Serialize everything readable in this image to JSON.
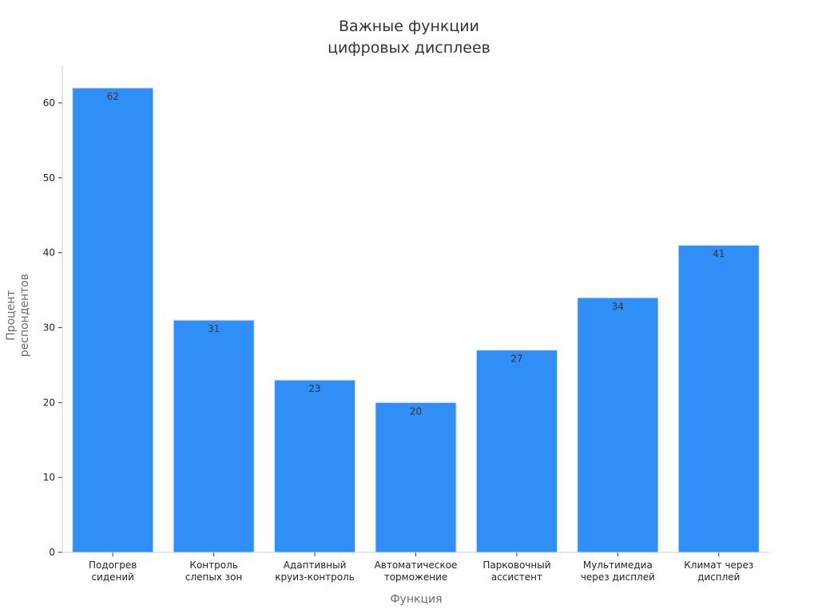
{
  "chart_data": {
    "type": "bar",
    "title": [
      "Важные функции",
      "цифровых дисплеев"
    ],
    "xlabel": "Функция",
    "ylabel": [
      "Процент",
      "респондентов"
    ],
    "categories": [
      [
        "Подогрев",
        "сидений"
      ],
      [
        "Контроль",
        "слепых зон"
      ],
      [
        "Адаптивный",
        "круиз-контроль"
      ],
      [
        "Автоматическое",
        "торможение"
      ],
      [
        "Парковочный",
        "ассистент"
      ],
      [
        "Мультимедиа",
        "через дисплей"
      ],
      [
        "Климат через",
        "дисплей"
      ]
    ],
    "values": [
      62,
      31,
      23,
      20,
      27,
      34,
      41
    ],
    "yticks": [
      0,
      10,
      20,
      30,
      40,
      50,
      60
    ],
    "ylim": [
      0,
      65
    ],
    "bar_color": "#2f8ff7",
    "bar_edge_color": "#d9e8fb",
    "grid": false,
    "legend": "none"
  }
}
